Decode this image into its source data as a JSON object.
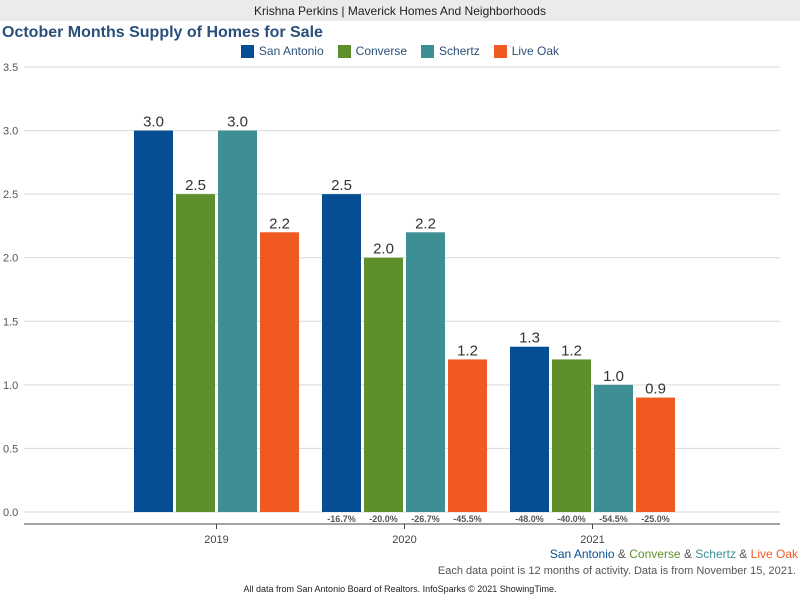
{
  "header": {
    "agent": "Krishna Perkins | Maverick Homes And Neighborhoods"
  },
  "chart_data": {
    "type": "bar",
    "title": "October Months Supply of Homes for Sale",
    "categories": [
      "2019",
      "2020",
      "2021"
    ],
    "ylim": [
      0,
      3.5
    ],
    "yticks": [
      "0.0",
      "0.5",
      "1.0",
      "1.5",
      "2.0",
      "2.5",
      "3.0",
      "3.5"
    ],
    "series": [
      {
        "name": "San Antonio",
        "color": "#064e93",
        "values": [
          3.0,
          2.5,
          1.3
        ],
        "labels": [
          "3.0",
          "2.5",
          "1.3"
        ],
        "changes": [
          "",
          "-16.7%",
          "-48.0%"
        ]
      },
      {
        "name": "Converse",
        "color": "#5e8f2b",
        "values": [
          2.5,
          2.0,
          1.2
        ],
        "labels": [
          "2.5",
          "2.0",
          "1.2"
        ],
        "changes": [
          "",
          "-20.0%",
          "-40.0%"
        ]
      },
      {
        "name": "Schertz",
        "color": "#3e8f93",
        "values": [
          3.0,
          2.2,
          1.0
        ],
        "labels": [
          "3.0",
          "2.2",
          "1.0"
        ],
        "changes": [
          "",
          "-26.7%",
          "-54.5%"
        ]
      },
      {
        "name": "Live Oak",
        "color": "#f05a22",
        "values": [
          2.2,
          1.2,
          0.9
        ],
        "labels": [
          "2.2",
          "1.2",
          "0.9"
        ],
        "changes": [
          "",
          "-45.5%",
          "-25.0%"
        ]
      }
    ]
  },
  "footnote": {
    "city_0": "San Antonio",
    "city_1": "Converse",
    "city_2": "Schertz",
    "city_3": "Live Oak",
    "sep": " & ",
    "note": "Each data point is 12 months of activity. Data is from November 15, 2021."
  },
  "footer": {
    "source": "All data from San Antonio Board of Realtors. InfoSparks © 2021 ShowingTime."
  }
}
